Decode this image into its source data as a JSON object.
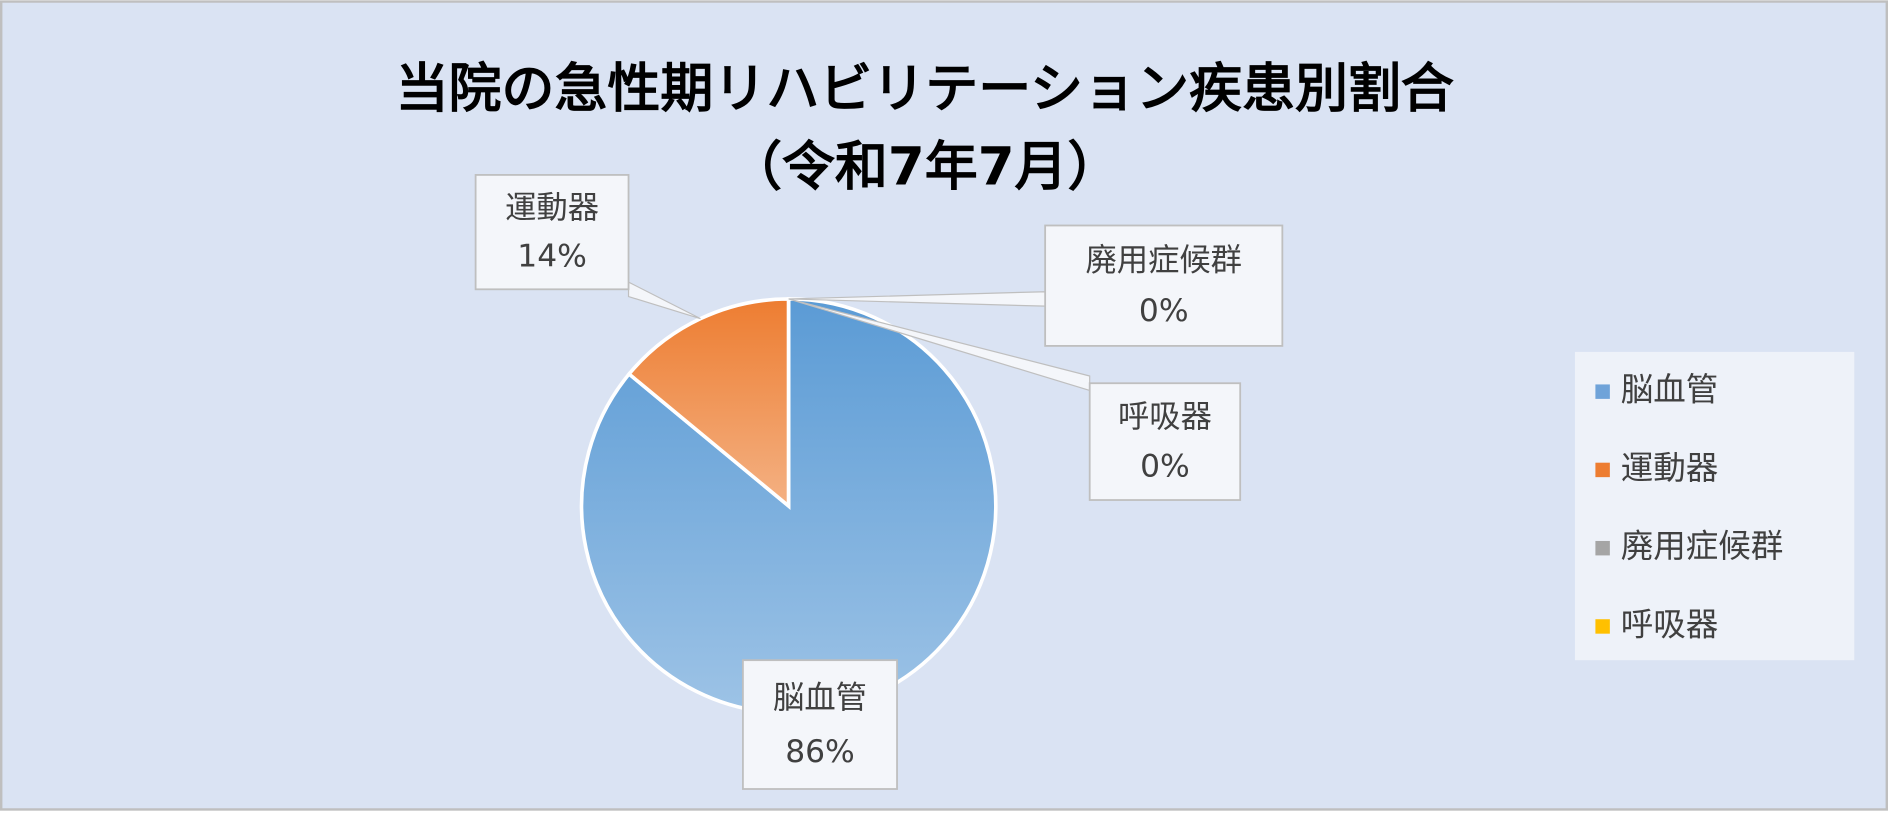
{
  "chart_data": {
    "type": "pie",
    "title": "当院の急性期リハビリテーション疾患別割合",
    "subtitle": "（令和7年7月）",
    "categories": [
      "脳血管",
      "運動器",
      "廃用症候群",
      "呼吸器"
    ],
    "values": [
      86,
      14,
      0,
      0
    ],
    "value_labels": [
      "86%",
      "14%",
      "0%",
      "0%"
    ],
    "colors": [
      "#6fa3d9",
      "#ed7d31",
      "#a5a5a5",
      "#ffc000"
    ],
    "legend": "right"
  }
}
